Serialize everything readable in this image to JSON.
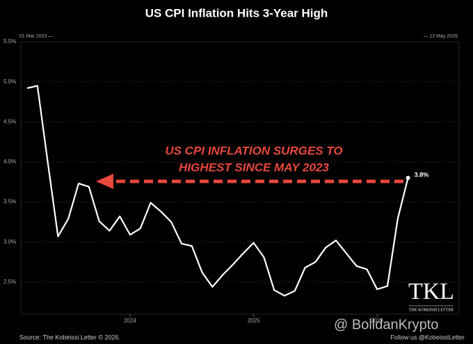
{
  "chart_data": {
    "type": "line",
    "title": "US CPI Inflation Hits 3-Year High",
    "start_label": "01 Mar 2023 —",
    "end_label": "— 12 May 2026",
    "annotation": [
      "US CPI INFLATION SURGES TO",
      "HIGHEST SINCE MAY 2023"
    ],
    "source": "Source: The Kobeissi Letter © 2026.",
    "follow": "Follow us @KobeissiLetter",
    "logo": "TKL",
    "logo_caption": "THE KOBEISSI LETTER",
    "watermark": "@ BolldanKrypto",
    "categories": [
      null,
      null,
      null,
      null,
      null,
      null,
      null,
      null,
      null,
      null,
      "2024",
      null,
      null,
      null,
      null,
      null,
      null,
      null,
      null,
      null,
      null,
      null,
      "2025",
      null,
      null,
      null,
      null,
      null,
      null,
      null,
      null,
      null,
      null,
      null,
      "2026",
      null,
      null,
      null
    ],
    "series": [
      {
        "name": "US CPI",
        "color": "#ffffff",
        "values": [
          4.92,
          4.95,
          4.0,
          3.07,
          3.29,
          3.73,
          3.69,
          3.26,
          3.14,
          3.32,
          3.09,
          3.17,
          3.49,
          3.38,
          3.25,
          2.98,
          2.95,
          2.62,
          2.44,
          2.59,
          2.72,
          2.86,
          2.99,
          2.81,
          2.4,
          2.33,
          2.39,
          2.68,
          2.75,
          2.93,
          3.02,
          2.86,
          2.7,
          2.66,
          2.41,
          2.45,
          3.29,
          3.8
        ],
        "value_labels": [
          null,
          null,
          null,
          null,
          null,
          null,
          null,
          null,
          null,
          null,
          null,
          null,
          null,
          null,
          null,
          null,
          null,
          null,
          null,
          null,
          null,
          null,
          null,
          null,
          null,
          null,
          null,
          null,
          null,
          null,
          null,
          null,
          null,
          null,
          null,
          null,
          null,
          "3.8%"
        ]
      }
    ],
    "ylim": [
      2.1,
      5.5
    ],
    "yticks": [
      {
        "value": 2.5,
        "label": "2.5%"
      },
      {
        "value": 3.0,
        "label": "3.0%"
      },
      {
        "value": 3.5,
        "label": "3.5%"
      },
      {
        "value": 4.0,
        "label": "4.0%"
      },
      {
        "value": 4.5,
        "label": "4.5%"
      },
      {
        "value": 5.0,
        "label": "5.0%"
      },
      {
        "value": 5.5,
        "label": "5.5%"
      }
    ],
    "grid": true
  }
}
